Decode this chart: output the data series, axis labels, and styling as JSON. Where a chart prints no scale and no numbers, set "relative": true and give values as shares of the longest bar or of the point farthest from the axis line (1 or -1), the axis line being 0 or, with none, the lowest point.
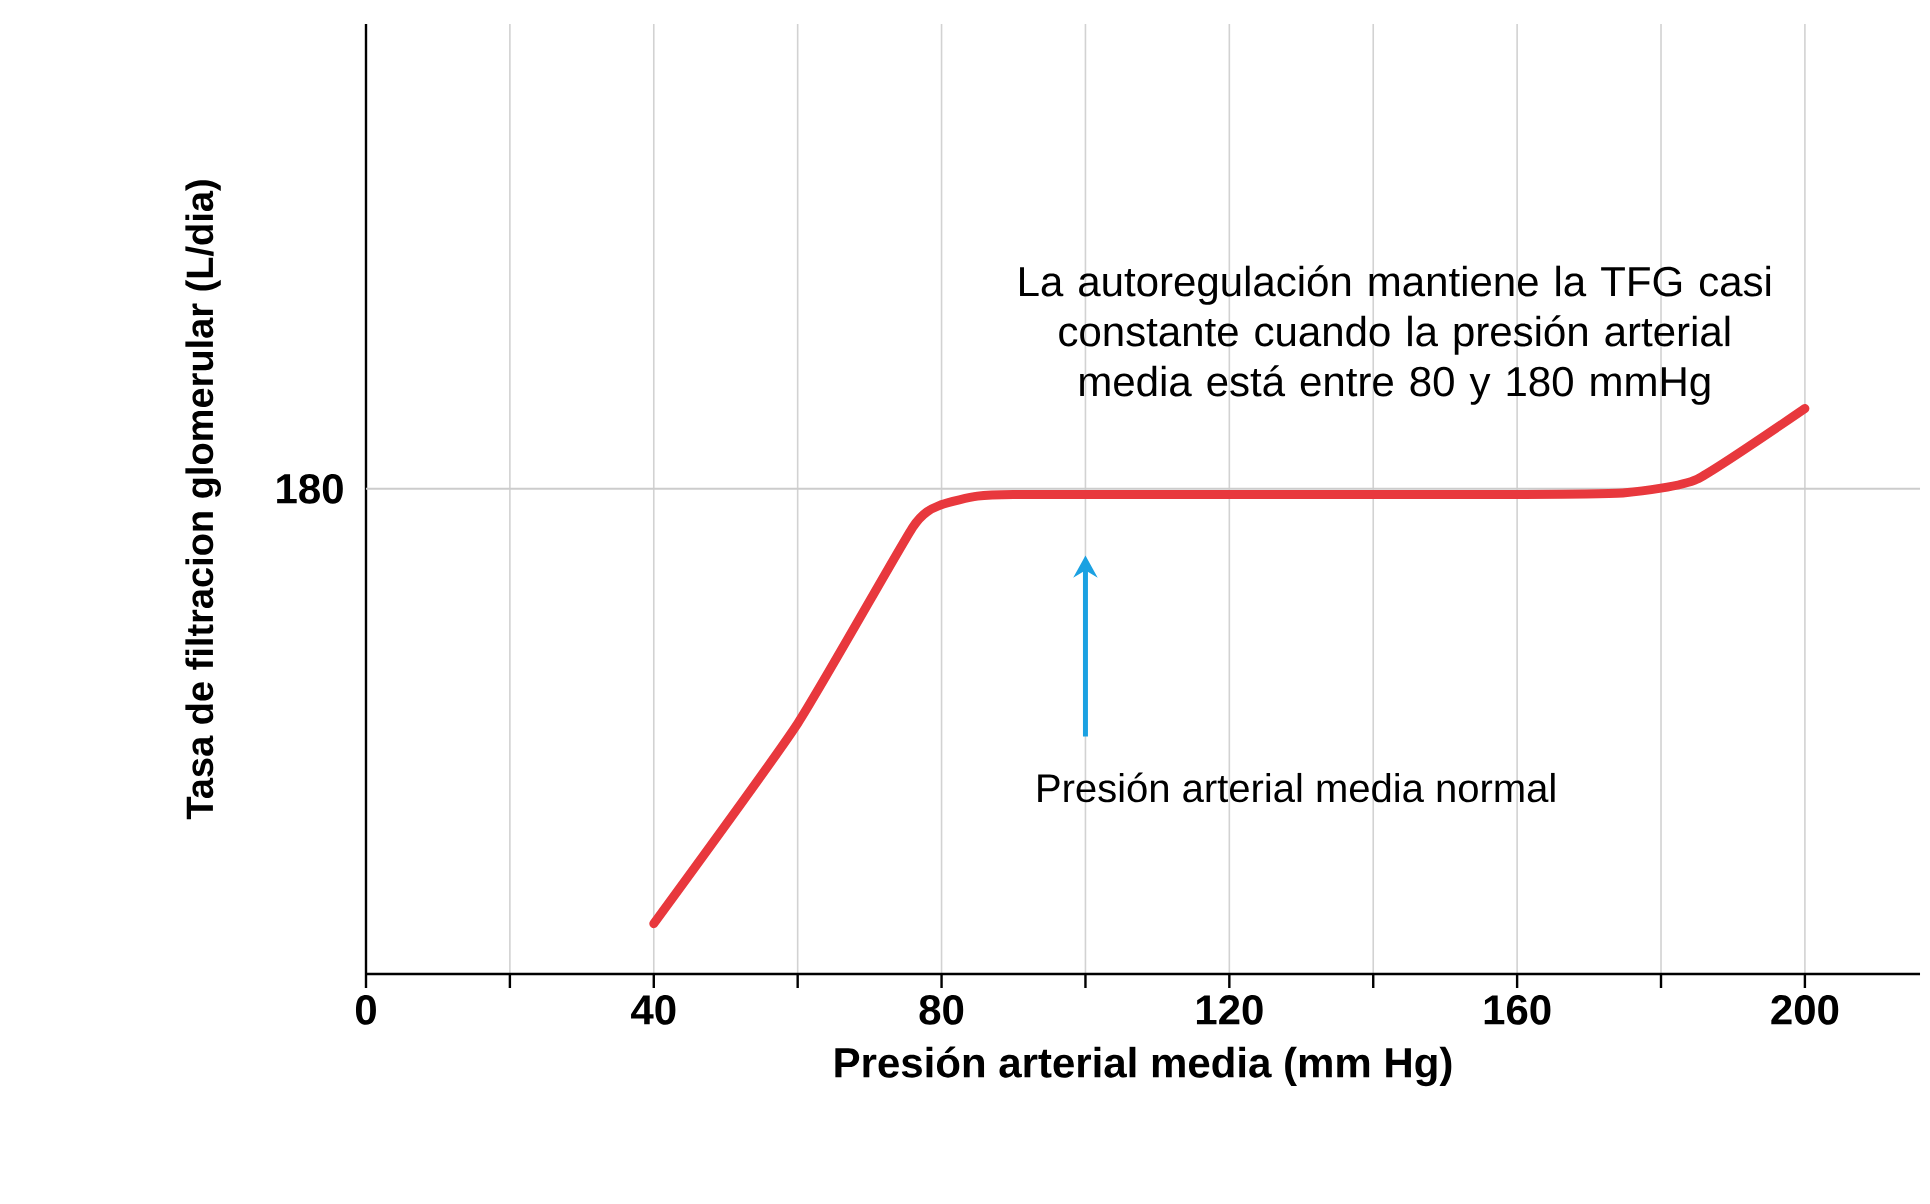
{
  "chart_data": {
    "type": "line",
    "relative": true,
    "xlabel": "Presión arterial media (mm Hg)",
    "ylabel": "Tasa de filtracion glomerular (L/dia)",
    "xlim": [
      0,
      216
    ],
    "xticks": [
      0,
      {
        "value": 20,
        "label": null
      },
      40,
      {
        "value": 60,
        "label": null
      },
      80,
      {
        "value": 100,
        "label": null
      },
      120,
      {
        "value": 140,
        "label": null
      },
      160,
      {
        "value": 180,
        "label": null
      },
      200
    ],
    "grid": "x",
    "series": [
      {
        "color": "#e8383d",
        "x": [
          40,
          60,
          76,
          80,
          85,
          90,
          120,
          160,
          175,
          185,
          200
        ],
        "values": [
          0.089,
          0.443,
          0.79,
          0.83,
          0.845,
          0.848,
          0.848,
          0.848,
          0.851,
          0.875,
          1
        ]
      }
    ],
    "ref_lines": [
      {
        "axis": "y",
        "value": 0.858,
        "color": "#cccccc"
      }
    ],
    "annotations": [
      "180",
      "La autoregulación mantiene la TFG casi constante cuando la presión arterial media está entre 80 y 180 mmHg",
      "Presión arterial media normal"
    ]
  }
}
